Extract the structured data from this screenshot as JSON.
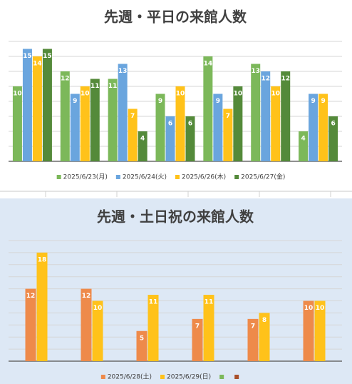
{
  "chart_data": [
    {
      "type": "bar",
      "title": "先週・平日の来館人数",
      "categories": [
        null,
        null,
        null,
        null,
        null,
        null,
        null
      ],
      "series": [
        {
          "name": "2025/6/23(月)",
          "color": "#7cb85a",
          "values": [
            10,
            12,
            11,
            9,
            14,
            13,
            4
          ]
        },
        {
          "name": "2025/6/24(火)",
          "color": "#6aa5de",
          "values": [
            15,
            9,
            13,
            6,
            9,
            12,
            9
          ]
        },
        {
          "name": "2025/6/26(木)",
          "color": "#ffc21a",
          "values": [
            14,
            10,
            7,
            10,
            7,
            10,
            9
          ]
        },
        {
          "name": "2025/6/27(金)",
          "color": "#548a3a",
          "values": [
            15,
            11,
            4,
            6,
            10,
            12,
            6
          ]
        }
      ],
      "ylim": [
        0,
        16
      ],
      "yticks": [
        0,
        2,
        4,
        6,
        8,
        10,
        12,
        14,
        16
      ],
      "grid": true,
      "legend": "bottom"
    },
    {
      "type": "bar",
      "title": "先週・土日祝の来館人数",
      "categories": [
        null,
        null,
        null,
        null,
        null,
        null
      ],
      "series": [
        {
          "name": "2025/6/28(土)",
          "color": "#ee8a4a",
          "values": [
            12,
            12,
            5,
            7,
            7,
            10
          ]
        },
        {
          "name": "2025/6/29(日)",
          "color": "#ffc21a",
          "values": [
            18,
            10,
            11,
            11,
            8,
            10
          ]
        },
        {
          "name": null,
          "color": "#7cb85a",
          "values": [
            null,
            null,
            null,
            null,
            null,
            null
          ]
        },
        {
          "name": null,
          "color": "#a9502a",
          "values": [
            null,
            null,
            null,
            null,
            null,
            null
          ]
        }
      ],
      "ylim": [
        0,
        20
      ],
      "yticks": [
        0,
        2,
        4,
        6,
        8,
        10,
        12,
        14,
        16,
        18,
        20
      ],
      "grid": true,
      "legend": "bottom"
    }
  ]
}
